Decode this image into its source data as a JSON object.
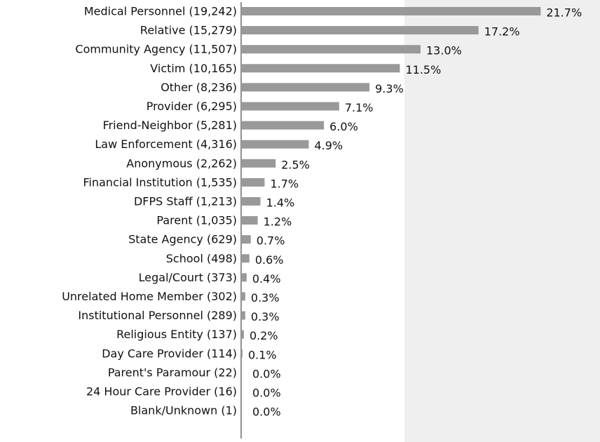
{
  "chart_data": {
    "type": "barh",
    "categories": [
      "Medical Personnel (19,242)",
      "Relative (15,279)",
      "Community Agency (11,507)",
      "Victim (10,165)",
      "Other (8,236)",
      "Provider (6,295)",
      "Friend-Neighbor (5,281)",
      "Law Enforcement (4,316)",
      "Anonymous (2,262)",
      "Financial Institution (1,535)",
      "DFPS Staff (1,213)",
      "Parent (1,035)",
      "State Agency (629)",
      "School (498)",
      "Legal/Court (373)",
      "Unrelated Home Member (302)",
      "Institutional Personnel (289)",
      "Religious Entity (137)",
      "Day Care Provider (114)",
      "Parent's Paramour (22)",
      "24 Hour Care Provider (16)",
      "Blank/Unknown (1)"
    ],
    "values": [
      21.7,
      17.2,
      13.0,
      11.5,
      9.3,
      7.1,
      6.0,
      4.9,
      2.5,
      1.7,
      1.4,
      1.2,
      0.7,
      0.6,
      0.4,
      0.3,
      0.3,
      0.2,
      0.1,
      0.0,
      0.0,
      0.0
    ],
    "value_labels": [
      "21.7%",
      "17.2%",
      "13.0%",
      "11.5%",
      "9.3%",
      "7.1%",
      "6.0%",
      "4.9%",
      "2.5%",
      "1.7%",
      "1.4%",
      "1.2%",
      "0.7%",
      "0.6%",
      "0.4%",
      "0.3%",
      "0.3%",
      "0.2%",
      "0.1%",
      "0.0%",
      "0.0%",
      "0.0%"
    ],
    "color": "#999999",
    "xlim": [
      0,
      26
    ]
  }
}
